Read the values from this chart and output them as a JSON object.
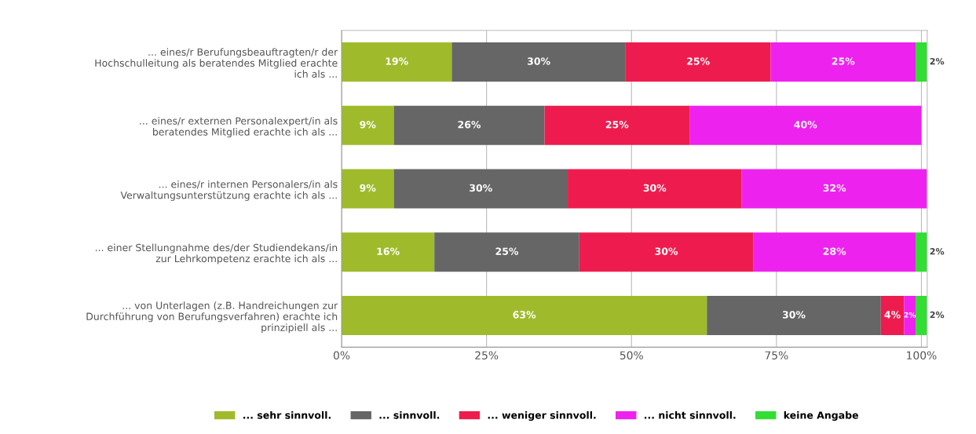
{
  "chart_data": {
    "type": "bar",
    "orientation": "horizontal",
    "stacked": true,
    "categories": [
      "... eines/r Berufungsbeauftragten/r der\nHochschulleitung als beratendes Mitglied erachte\nich als ...",
      "... eines/r externen Personalexpert/in als\nberatendes Mitglied erachte ich als ...",
      "... eines/r internen Personalers/in als\nVerwaltungsunterstützung erachte ich als ...",
      "... einer Stellungnahme des/der Studiendekans/in\nzur Lehrkompetenz erachte ich als ...",
      "... von Unterlagen (z.B. Handreichungen zur\nDurchführung von Berufungsverfahren) erachte ich\nprinzipiell als ..."
    ],
    "series": [
      {
        "name": "... sehr sinnvoll.",
        "color": "#9fbb2b",
        "values": [
          19,
          9,
          9,
          16,
          63
        ],
        "value_labels": [
          "19%",
          "9%",
          "9%",
          "16%",
          "63%"
        ]
      },
      {
        "name": "... sinnvoll.",
        "color": "#666666",
        "values": [
          30,
          26,
          30,
          25,
          30
        ],
        "value_labels": [
          "30%",
          "26%",
          "30%",
          "25%",
          "30%"
        ]
      },
      {
        "name": "... weniger sinnvoll.",
        "color": "#ee1c4e",
        "values": [
          25,
          25,
          30,
          30,
          4
        ],
        "value_labels": [
          "25%",
          "25%",
          "30%",
          "30%",
          "4%"
        ]
      },
      {
        "name": "... nicht sinnvoll.",
        "color": "#ee22ee",
        "values": [
          25,
          40,
          32,
          28,
          2
        ],
        "value_labels": [
          "25%",
          "40%",
          "32%",
          "28%",
          "2%"
        ]
      },
      {
        "name": "keine Angabe",
        "color": "#33dd33",
        "values": [
          2,
          0,
          0,
          2,
          2
        ],
        "value_labels": [
          "2%",
          null,
          null,
          "2%",
          "2%"
        ]
      }
    ],
    "xlim": [
      0,
      101
    ],
    "xticks": [
      {
        "value": 0,
        "label": "0%"
      },
      {
        "value": 25,
        "label": "25%"
      },
      {
        "value": 50,
        "label": "50%"
      },
      {
        "value": 75,
        "label": "75%"
      },
      {
        "value": 100,
        "label": "100%"
      }
    ],
    "grid": "x",
    "legend": "bottom"
  }
}
